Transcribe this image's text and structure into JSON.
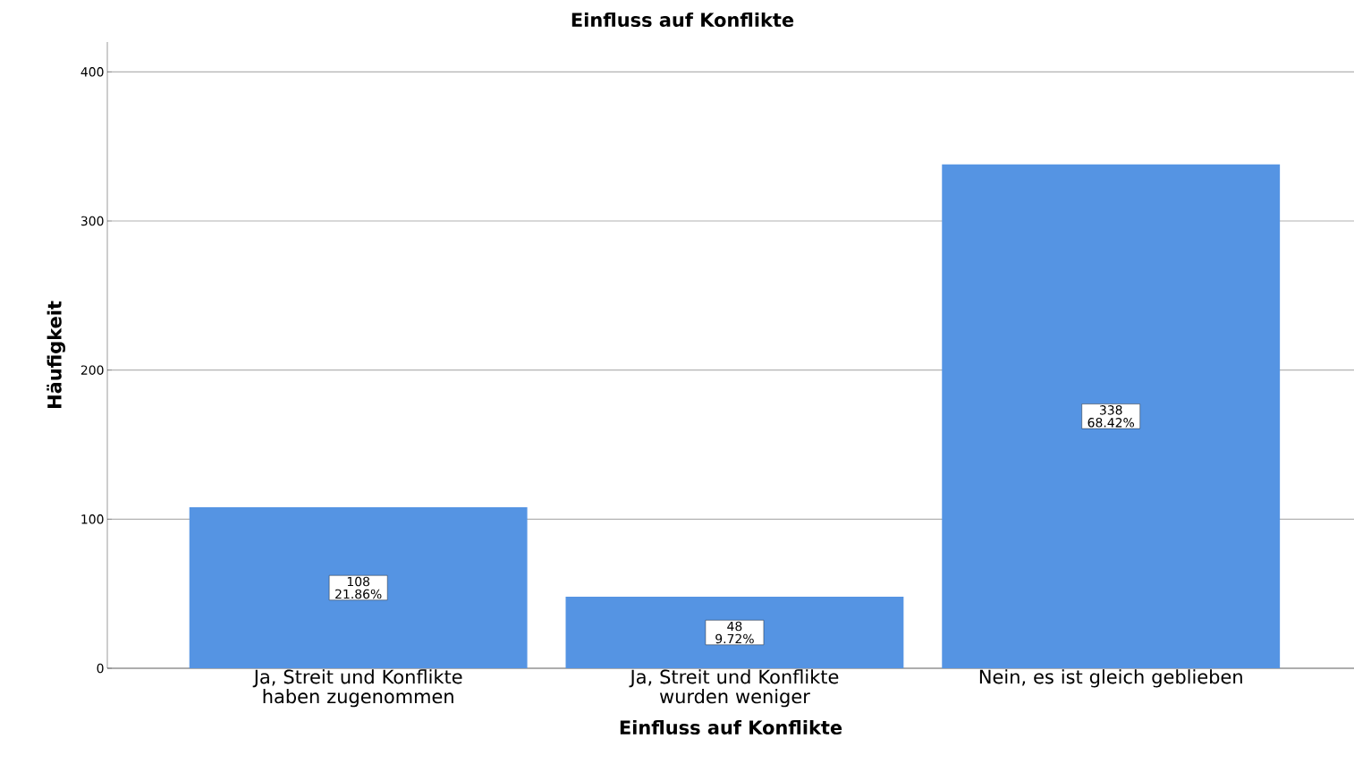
{
  "chart_data": {
    "type": "bar",
    "title": "Einfluss auf Konflikte",
    "xlabel": "Einfluss auf Konflikte",
    "ylabel": "Häufigkeit",
    "categories": [
      "Ja, Streit und Konflikte haben zugenommen",
      "Ja, Streit und Konflikte wurden weniger",
      "Nein, es ist gleich geblieben"
    ],
    "values": [
      108,
      48,
      338
    ],
    "color": "#5594e3",
    "value_labels": [
      "108 21.86%",
      "48 9.72%",
      "338 68.42%"
    ],
    "ylim": [
      0,
      420
    ],
    "yticks": [
      0,
      100,
      200,
      300,
      400
    ],
    "grid": "y"
  }
}
